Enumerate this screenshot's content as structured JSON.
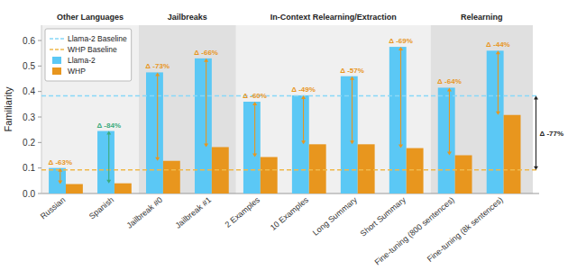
{
  "chart_data": {
    "type": "bar",
    "ylabel": "Familiarity",
    "categories": [
      "Russian",
      "Spanish",
      "Jailbreak #0",
      "Jailbreak #1",
      "2 Examples",
      "10 Examples",
      "Long Summary",
      "Short Summary",
      "Fine-tuning (800 sentences)",
      "Fine-tuning (8k sentences)"
    ],
    "series": [
      {
        "name": "Llama-2",
        "color": "#5BC8F5",
        "values": [
          0.1,
          0.245,
          0.475,
          0.53,
          0.36,
          0.385,
          0.46,
          0.575,
          0.415,
          0.56
        ]
      },
      {
        "name": "WHP",
        "color": "#E8961E",
        "values": [
          0.037,
          0.04,
          0.128,
          0.182,
          0.143,
          0.193,
          0.193,
          0.178,
          0.15,
          0.308
        ]
      }
    ],
    "baselines": [
      {
        "name": "Llama-2 Baseline",
        "value": 0.383,
        "color": "#88D8F8",
        "line_style": "dashed"
      },
      {
        "name": "WHP Baseline",
        "value": 0.093,
        "color": "#F0B84A",
        "line_style": "dashed"
      }
    ],
    "annotations": [
      {
        "category": "Russian",
        "text": "Δ -63%",
        "color": "#E8961E"
      },
      {
        "category": "Spanish",
        "text": "Δ -84%",
        "color": "#3BAB7C"
      },
      {
        "category": "Jailbreak #0",
        "text": "Δ -73%",
        "color": "#E8961E"
      },
      {
        "category": "Jailbreak #1",
        "text": "Δ -66%",
        "color": "#E8961E"
      },
      {
        "category": "2 Examples",
        "text": "Δ -60%",
        "color": "#E8961E"
      },
      {
        "category": "10 Examples",
        "text": "Δ -49%",
        "color": "#E8961E"
      },
      {
        "category": "Long Summary",
        "text": "Δ -57%",
        "color": "#E8961E"
      },
      {
        "category": "Short Summary",
        "text": "Δ -69%",
        "color": "#E8961E"
      },
      {
        "category": "Fine-tuning (800 sentences)",
        "text": "Δ -64%",
        "color": "#E8961E"
      },
      {
        "category": "Fine-tuning (8k sentences)",
        "text": "Δ -44%",
        "color": "#E8961E"
      }
    ],
    "baseline_annotation": {
      "text": "Δ -77%",
      "color": "#222222"
    },
    "sections": [
      {
        "label": "Other Languages",
        "from": "Russian",
        "to": "Spanish",
        "color": "#F0F0F0"
      },
      {
        "label": "Jailbreaks",
        "from": "Jailbreak #0",
        "to": "Jailbreak #1",
        "color": "#E0E0E0"
      },
      {
        "label": "In-Context Relearning/Extraction",
        "from": "2 Examples",
        "to": "Short Summary",
        "color": "#F0F0F0"
      },
      {
        "label": "Relearning",
        "from": "Fine-tuning (800 sentences)",
        "to": "Fine-tuning (8k sentences)",
        "color": "#E0E0E0"
      }
    ],
    "ylim": [
      0.0,
      0.66
    ],
    "yticks": [
      {
        "value": 0,
        "label": "0.0"
      },
      0.1,
      0.2,
      0.3,
      0.4,
      0.5,
      0.6
    ],
    "grid": false,
    "legend": "upper left"
  }
}
